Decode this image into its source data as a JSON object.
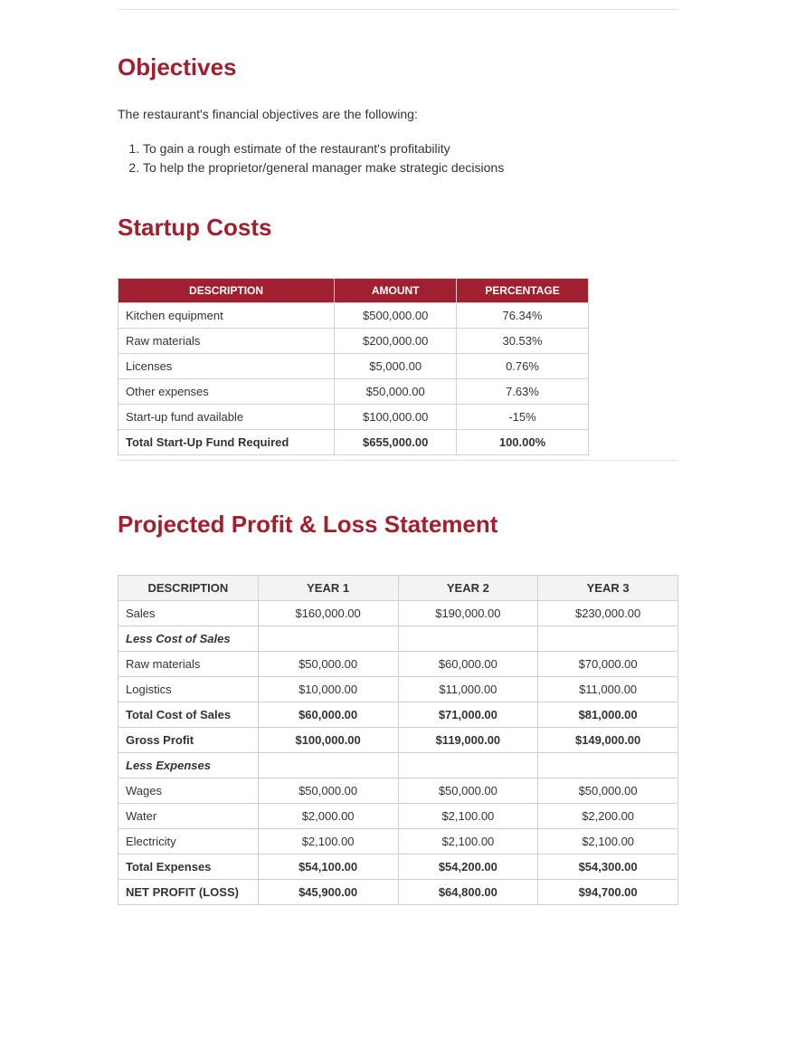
{
  "colors": {
    "heading": "#a02030",
    "tableHeaderBg": "#a02030",
    "tableHeaderFg": "#ffffff",
    "borderGray": "#d0d0d0",
    "lightGray": "#f3f3f3",
    "text": "#333333"
  },
  "typography": {
    "headingSizePx": 26,
    "bodySizePx": 14,
    "tableSizePx": 13
  },
  "objectives": {
    "heading": "Objectives",
    "intro": "The restaurant's financial objectives are the following:",
    "items": [
      "To gain a rough estimate of the restaurant's profitability",
      "To help the proprietor/general manager make strategic decisions"
    ]
  },
  "startup": {
    "heading": "Startup Costs",
    "columns": [
      "DESCRIPTION",
      "AMOUNT",
      "PERCENTAGE"
    ],
    "rows": [
      {
        "desc": "Kitchen equipment",
        "amount": "$500,000.00",
        "pct": "76.34%",
        "bold": false
      },
      {
        "desc": "Raw materials",
        "amount": "$200,000.00",
        "pct": "30.53%",
        "bold": false
      },
      {
        "desc": "Licenses",
        "amount": "$5,000.00",
        "pct": "0.76%",
        "bold": false
      },
      {
        "desc": "Other expenses",
        "amount": "$50,000.00",
        "pct": "7.63%",
        "bold": false
      },
      {
        "desc": "Start-up fund available",
        "amount": "$100,000.00",
        "pct": "-15%",
        "bold": false
      },
      {
        "desc": "Total Start-Up Fund Required",
        "amount": "$655,000.00",
        "pct": "100.00%",
        "bold": true
      }
    ]
  },
  "profitloss": {
    "heading": "Projected Profit & Loss Statement",
    "columns": [
      "DESCRIPTION",
      "YEAR 1",
      "YEAR 2",
      "YEAR 3"
    ],
    "rows": [
      {
        "desc": "Sales",
        "y1": "$160,000.00",
        "y2": "$190,000.00",
        "y3": "$230,000.00",
        "style": "normal"
      },
      {
        "desc": "Less Cost of Sales",
        "y1": "",
        "y2": "",
        "y3": "",
        "style": "section"
      },
      {
        "desc": "Raw materials",
        "y1": "$50,000.00",
        "y2": "$60,000.00",
        "y3": "$70,000.00",
        "style": "normal"
      },
      {
        "desc": "Logistics",
        "y1": "$10,000.00",
        "y2": "$11,000.00",
        "y3": "$11,000.00",
        "style": "normal"
      },
      {
        "desc": "Total Cost of Sales",
        "y1": "$60,000.00",
        "y2": "$71,000.00",
        "y3": "$81,000.00",
        "style": "bold"
      },
      {
        "desc": "Gross Profit",
        "y1": "$100,000.00",
        "y2": "$119,000.00",
        "y3": "$149,000.00",
        "style": "bold"
      },
      {
        "desc": "Less Expenses",
        "y1": "",
        "y2": "",
        "y3": "",
        "style": "section"
      },
      {
        "desc": "Wages",
        "y1": "$50,000.00",
        "y2": "$50,000.00",
        "y3": "$50,000.00",
        "style": "normal"
      },
      {
        "desc": "Water",
        "y1": "$2,000.00",
        "y2": "$2,100.00",
        "y3": "$2,200.00",
        "style": "normal"
      },
      {
        "desc": "Electricity",
        "y1": "$2,100.00",
        "y2": "$2,100.00",
        "y3": "$2,100.00",
        "style": "normal"
      },
      {
        "desc": "Total Expenses",
        "y1": "$54,100.00",
        "y2": "$54,200.00",
        "y3": "$54,300.00",
        "style": "bold"
      },
      {
        "desc": "NET PROFIT (LOSS)",
        "y1": "$45,900.00",
        "y2": "$64,800.00",
        "y3": "$94,700.00",
        "style": "bold"
      }
    ]
  }
}
